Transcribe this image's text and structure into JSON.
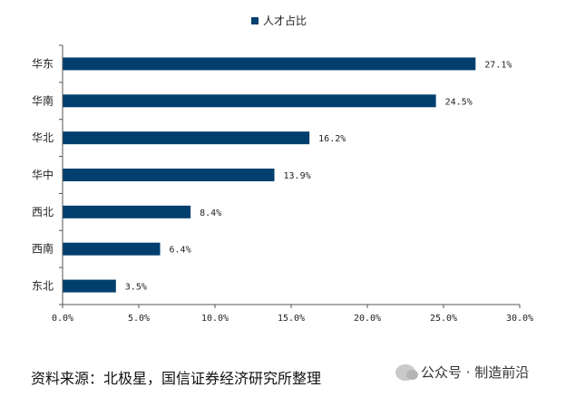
{
  "chart_data": {
    "type": "bar",
    "orientation": "horizontal",
    "categories": [
      "华东",
      "华南",
      "华北",
      "华中",
      "西北",
      "西南",
      "东北"
    ],
    "series": [
      {
        "name": "人才占比",
        "values": [
          27.1,
          24.5,
          16.2,
          13.9,
          8.4,
          6.4,
          3.5
        ],
        "value_labels": [
          "27.1%",
          "24.5%",
          "16.2%",
          "13.9%",
          "8.4%",
          "6.4%",
          "3.5%"
        ]
      }
    ],
    "xlim": [
      0,
      30
    ],
    "x_ticks": [
      0,
      5,
      10,
      15,
      20,
      25,
      30
    ],
    "x_tick_labels": [
      "0.0%",
      "5.0%",
      "10.0%",
      "15.0%",
      "20.0%",
      "25.0%",
      "30.0%"
    ],
    "legend_position": "top-center",
    "grid": false,
    "bar_color": "#003f6e"
  },
  "footer": {
    "source": "资料来源：北极星，国信证券经济研究所整理",
    "watermark": "公众号 · 制造前沿"
  }
}
